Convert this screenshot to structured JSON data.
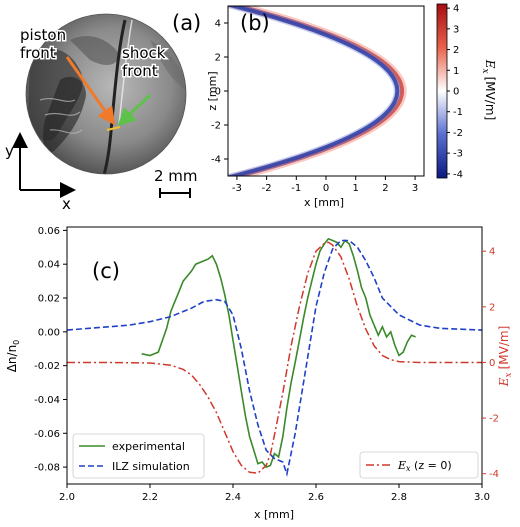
{
  "panel_a": {
    "label": "(a)",
    "piston_label": [
      "piston",
      "front"
    ],
    "shock_label": [
      "shock",
      "front"
    ],
    "scale_text": "2 mm",
    "axis_x": "x",
    "axis_y": "y",
    "colors": {
      "piston_arrow": "#f07a2a",
      "shock_arrow": "#5ec24a",
      "marker": "#f2c12e"
    }
  },
  "chart_data": [
    {
      "type": "heatmap",
      "panel_label": "(b)",
      "xlabel": "x [mm]",
      "ylabel": "z [mm]",
      "xlim": [
        -3.3,
        3.3
      ],
      "ylim": [
        -5,
        5
      ],
      "xticks": [
        -3,
        -2,
        -1,
        0,
        1,
        2,
        3
      ],
      "xtick_labels": [
        "-3",
        "-2",
        "-1",
        "0",
        "1",
        "2",
        "3"
      ],
      "yticks": [
        4,
        2,
        0,
        -2,
        -4
      ],
      "ytick_labels": [
        "4",
        "2",
        "0",
        "-2",
        "-4"
      ],
      "field": "E_x",
      "front_shape": "parabolic shock front, vertex at x = 2.5 mm, reaching x = -3 mm at z = ±5 mm; blue (negative) trailing layer, red (positive) leading layer",
      "front_vertex_x": 2.5,
      "front_edge_x": -3.0,
      "front_edge_z": 5.0,
      "colorbar": {
        "label_main": "E",
        "label_sub": "x",
        "units": "[MV/m]",
        "range": [
          -4.2,
          4.2
        ],
        "ticks": [
          4,
          3,
          2,
          1,
          0,
          -1,
          -2,
          -3,
          -4
        ],
        "tick_labels": [
          "4",
          "3",
          "2",
          "1",
          "0",
          "-1",
          "-2",
          "-3",
          "-4"
        ],
        "colormap": [
          "#0b1a80",
          "#ffffff",
          "#a50d12"
        ]
      }
    },
    {
      "type": "line",
      "panel_label": "(c)",
      "xlabel": "x [mm]",
      "ylabel_left": {
        "main": "Δn/n",
        "sub": "0"
      },
      "ylabel_right": {
        "main": "E",
        "sub": "x",
        "units": "[MV/m]"
      },
      "xlim": [
        2.0,
        3.0
      ],
      "ylim_left": [
        -0.09,
        0.062
      ],
      "ylim_right": [
        -4.37,
        4.87
      ],
      "xticks": [
        2.0,
        2.2,
        2.4,
        2.6,
        2.8,
        3.0
      ],
      "xtick_labels": [
        "2.0",
        "2.2",
        "2.4",
        "2.6",
        "2.8",
        "3.0"
      ],
      "yticks_left": [
        0.06,
        0.04,
        0.02,
        0.0,
        -0.02,
        -0.04,
        -0.06,
        -0.08
      ],
      "ytick_labels_left": [
        "0.06",
        "0.04",
        "0.02",
        "0.00",
        "-0.02",
        "-0.04",
        "-0.06",
        "-0.08"
      ],
      "yticks_right": [
        4,
        2,
        0,
        -2,
        -4
      ],
      "ytick_labels_right": [
        "4",
        "2",
        "0",
        "-2",
        "-4"
      ],
      "series": [
        {
          "name": "experimental",
          "axis": "left",
          "color": "#3a8a2a",
          "dash": "solid",
          "x": [
            2.18,
            2.2,
            2.22,
            2.24,
            2.25,
            2.26,
            2.27,
            2.28,
            2.29,
            2.3,
            2.31,
            2.32,
            2.33,
            2.34,
            2.35,
            2.36,
            2.37,
            2.38,
            2.39,
            2.4,
            2.41,
            2.42,
            2.43,
            2.44,
            2.45,
            2.46,
            2.47,
            2.48,
            2.49,
            2.5,
            2.51,
            2.52,
            2.53,
            2.54,
            2.55,
            2.56,
            2.57,
            2.58,
            2.59,
            2.6,
            2.61,
            2.62,
            2.63,
            2.64,
            2.65,
            2.66,
            2.67,
            2.68,
            2.69,
            2.7,
            2.71,
            2.72,
            2.73,
            2.74,
            2.75,
            2.76,
            2.77,
            2.78,
            2.79,
            2.8,
            2.81,
            2.82,
            2.83,
            2.84
          ],
          "y": [
            -0.013,
            -0.014,
            -0.012,
            0.002,
            0.012,
            0.018,
            0.024,
            0.03,
            0.033,
            0.036,
            0.04,
            0.041,
            0.042,
            0.043,
            0.045,
            0.04,
            0.032,
            0.022,
            0.01,
            -0.005,
            -0.02,
            -0.035,
            -0.05,
            -0.062,
            -0.07,
            -0.078,
            -0.077,
            -0.08,
            -0.079,
            -0.072,
            -0.074,
            -0.062,
            -0.045,
            -0.03,
            -0.018,
            -0.005,
            0.008,
            0.02,
            0.03,
            0.04,
            0.048,
            0.052,
            0.055,
            0.054,
            0.053,
            0.05,
            0.054,
            0.052,
            0.045,
            0.036,
            0.026,
            0.02,
            0.01,
            0.004,
            -0.002,
            0.003,
            -0.003,
            0.0,
            -0.008,
            -0.014,
            -0.012,
            -0.006,
            -0.002,
            -0.003
          ]
        },
        {
          "name": "ILZ simulation",
          "axis": "left",
          "color": "#2040c8",
          "dash": "dashed",
          "x": [
            2.0,
            2.05,
            2.1,
            2.15,
            2.2,
            2.25,
            2.3,
            2.33,
            2.36,
            2.38,
            2.4,
            2.42,
            2.44,
            2.46,
            2.48,
            2.5,
            2.52,
            2.53,
            2.55,
            2.58,
            2.6,
            2.62,
            2.64,
            2.66,
            2.68,
            2.7,
            2.72,
            2.74,
            2.76,
            2.8,
            2.85,
            2.9,
            3.0
          ],
          "y": [
            0.001,
            0.002,
            0.003,
            0.004,
            0.006,
            0.009,
            0.014,
            0.018,
            0.019,
            0.018,
            0.01,
            -0.01,
            -0.035,
            -0.055,
            -0.07,
            -0.075,
            -0.077,
            -0.084,
            -0.06,
            -0.015,
            0.015,
            0.035,
            0.049,
            0.054,
            0.054,
            0.05,
            0.042,
            0.032,
            0.02,
            0.01,
            0.004,
            0.002,
            0.001
          ]
        },
        {
          "name": "E",
          "name_sub": "x",
          "name_suffix": " (z = 0)",
          "axis": "right",
          "color": "#d0382c",
          "dash": "dashdot",
          "x": [
            2.0,
            2.1,
            2.2,
            2.25,
            2.28,
            2.3,
            2.32,
            2.34,
            2.36,
            2.38,
            2.4,
            2.42,
            2.44,
            2.46,
            2.48,
            2.49,
            2.5,
            2.52,
            2.54,
            2.56,
            2.58,
            2.6,
            2.62,
            2.63,
            2.64,
            2.66,
            2.68,
            2.7,
            2.72,
            2.74,
            2.76,
            2.78,
            2.8,
            2.85,
            2.9,
            3.0
          ],
          "y": [
            0.0,
            0.0,
            -0.02,
            -0.1,
            -0.25,
            -0.45,
            -0.8,
            -1.25,
            -1.8,
            -2.5,
            -3.2,
            -3.7,
            -3.95,
            -3.98,
            -3.7,
            -3.3,
            -2.6,
            -1.1,
            0.6,
            2.0,
            3.2,
            4.0,
            4.28,
            4.32,
            4.22,
            3.8,
            3.0,
            2.0,
            1.2,
            0.6,
            0.25,
            0.1,
            0.03,
            0.0,
            0.0,
            0.0
          ]
        }
      ]
    }
  ]
}
